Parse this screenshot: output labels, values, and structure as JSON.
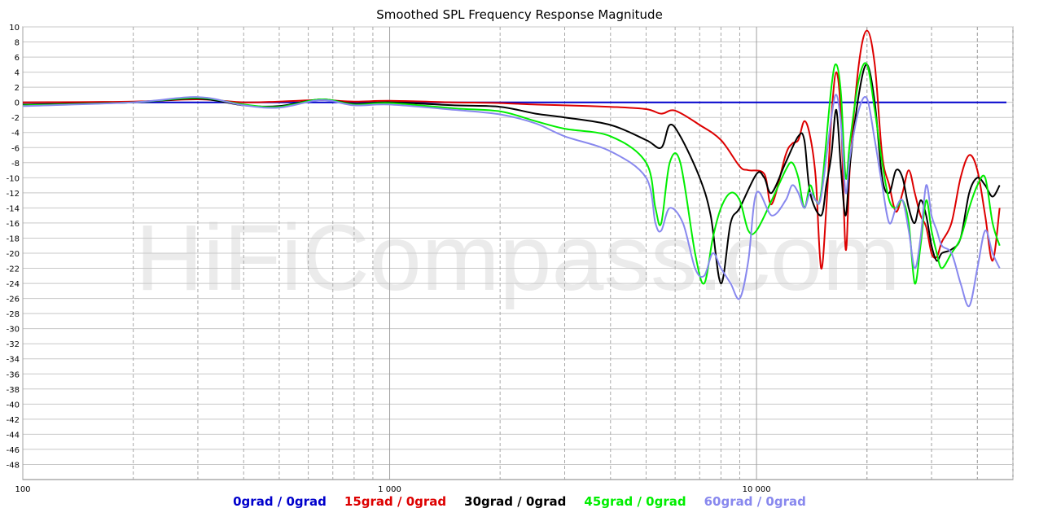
{
  "chart_data": {
    "type": "line",
    "title": "Smoothed SPL Frequency Response Magnitude",
    "watermark": "HiFiCompass.com",
    "xscale": "log",
    "xlim": [
      100,
      50000
    ],
    "ylim": [
      -50,
      10
    ],
    "x_tick_labels": [
      {
        "value": 100,
        "label": "100"
      },
      {
        "value": 1000,
        "label": "1 000"
      },
      {
        "value": 10000,
        "label": "10 000"
      }
    ],
    "y_ticks": [
      10,
      8,
      6,
      4,
      2,
      0,
      -2,
      -4,
      -6,
      -8,
      -10,
      -12,
      -14,
      -16,
      -18,
      -20,
      -22,
      -24,
      -26,
      -28,
      -30,
      -32,
      -34,
      -36,
      -38,
      -40,
      -42,
      -44,
      -46,
      -48
    ],
    "grid": true,
    "legend_position": "bottom",
    "series": [
      {
        "name": "0grad / 0grad",
        "color": "#0000cc",
        "points": [
          [
            100,
            0
          ],
          [
            300,
            0
          ],
          [
            1000,
            0
          ],
          [
            3000,
            0
          ],
          [
            10000,
            0
          ],
          [
            20000,
            0
          ],
          [
            48000,
            0
          ]
        ]
      },
      {
        "name": "15grad / 0grad",
        "color": "#dd0000",
        "points": [
          [
            100,
            0
          ],
          [
            200,
            0.1
          ],
          [
            300,
            0.4
          ],
          [
            400,
            0
          ],
          [
            500,
            0.1
          ],
          [
            650,
            0.3
          ],
          [
            800,
            0.1
          ],
          [
            1000,
            0.2
          ],
          [
            1500,
            0
          ],
          [
            2000,
            -0.1
          ],
          [
            2500,
            -0.3
          ],
          [
            3000,
            -0.4
          ],
          [
            4000,
            -0.6
          ],
          [
            5000,
            -0.9
          ],
          [
            5500,
            -1.5
          ],
          [
            6000,
            -1.1
          ],
          [
            7000,
            -3
          ],
          [
            8000,
            -5
          ],
          [
            9000,
            -8.5
          ],
          [
            9500,
            -9
          ],
          [
            10500,
            -9.5
          ],
          [
            11000,
            -13.5
          ],
          [
            12000,
            -7
          ],
          [
            12500,
            -5.5
          ],
          [
            13000,
            -5
          ],
          [
            13500,
            -2.5
          ],
          [
            14000,
            -4.5
          ],
          [
            14500,
            -10
          ],
          [
            15000,
            -22
          ],
          [
            15500,
            -14
          ],
          [
            16000,
            -2
          ],
          [
            16500,
            4
          ],
          [
            17000,
            -2
          ],
          [
            17500,
            -19.5
          ],
          [
            18000,
            -8
          ],
          [
            19000,
            5
          ],
          [
            20000,
            9.5
          ],
          [
            21000,
            5
          ],
          [
            22000,
            -7
          ],
          [
            23000,
            -11
          ],
          [
            24000,
            -14.5
          ],
          [
            25000,
            -12
          ],
          [
            26000,
            -9
          ],
          [
            27000,
            -12
          ],
          [
            28000,
            -15
          ],
          [
            29000,
            -16.5
          ],
          [
            30000,
            -20
          ],
          [
            31000,
            -20.5
          ],
          [
            32000,
            -18.5
          ],
          [
            34000,
            -16
          ],
          [
            36000,
            -10
          ],
          [
            38000,
            -7
          ],
          [
            40000,
            -9
          ],
          [
            42000,
            -15
          ],
          [
            44000,
            -21
          ],
          [
            46000,
            -14
          ]
        ]
      },
      {
        "name": "30grad / 0grad",
        "color": "#000000",
        "points": [
          [
            100,
            -0.3
          ],
          [
            200,
            0
          ],
          [
            300,
            0.5
          ],
          [
            400,
            -0.4
          ],
          [
            500,
            -0.5
          ],
          [
            650,
            0.4
          ],
          [
            800,
            -0.2
          ],
          [
            1000,
            0
          ],
          [
            1500,
            -0.4
          ],
          [
            2000,
            -0.6
          ],
          [
            2500,
            -1.5
          ],
          [
            3000,
            -2
          ],
          [
            4000,
            -3
          ],
          [
            5000,
            -5
          ],
          [
            5500,
            -6
          ],
          [
            5800,
            -3
          ],
          [
            6200,
            -4.5
          ],
          [
            7000,
            -10
          ],
          [
            7500,
            -15
          ],
          [
            8000,
            -24
          ],
          [
            8500,
            -16
          ],
          [
            9000,
            -14
          ],
          [
            10000,
            -9.5
          ],
          [
            10500,
            -10
          ],
          [
            11000,
            -12
          ],
          [
            12000,
            -8
          ],
          [
            13000,
            -4.5
          ],
          [
            13500,
            -5
          ],
          [
            14000,
            -12
          ],
          [
            15000,
            -15
          ],
          [
            15500,
            -11
          ],
          [
            16000,
            -7
          ],
          [
            16500,
            -1
          ],
          [
            17000,
            -9
          ],
          [
            17500,
            -15
          ],
          [
            18000,
            -8
          ],
          [
            19000,
            1
          ],
          [
            20000,
            5
          ],
          [
            21000,
            0
          ],
          [
            22000,
            -10
          ],
          [
            23000,
            -12
          ],
          [
            24000,
            -9
          ],
          [
            25000,
            -10
          ],
          [
            26000,
            -14
          ],
          [
            27000,
            -16
          ],
          [
            28000,
            -13
          ],
          [
            29000,
            -15
          ],
          [
            30000,
            -19
          ],
          [
            31000,
            -21
          ],
          [
            32000,
            -20
          ],
          [
            34000,
            -19.5
          ],
          [
            36000,
            -18
          ],
          [
            38000,
            -12
          ],
          [
            40000,
            -10
          ],
          [
            42000,
            -11
          ],
          [
            44000,
            -12.5
          ],
          [
            46000,
            -11
          ]
        ]
      },
      {
        "name": "45grad / 0grad",
        "color": "#00ee00",
        "points": [
          [
            100,
            -0.4
          ],
          [
            200,
            0
          ],
          [
            300,
            0.6
          ],
          [
            400,
            -0.3
          ],
          [
            500,
            -0.6
          ],
          [
            650,
            0.4
          ],
          [
            800,
            -0.3
          ],
          [
            1000,
            -0.1
          ],
          [
            1500,
            -0.8
          ],
          [
            2000,
            -1.2
          ],
          [
            2500,
            -2.5
          ],
          [
            3000,
            -3.5
          ],
          [
            4000,
            -4.5
          ],
          [
            5000,
            -8
          ],
          [
            5300,
            -14
          ],
          [
            5500,
            -16
          ],
          [
            5800,
            -8
          ],
          [
            6200,
            -8
          ],
          [
            6800,
            -20
          ],
          [
            7200,
            -24
          ],
          [
            7600,
            -18
          ],
          [
            8000,
            -14
          ],
          [
            8500,
            -12
          ],
          [
            9000,
            -13
          ],
          [
            9500,
            -17
          ],
          [
            10000,
            -17
          ],
          [
            11000,
            -13
          ],
          [
            12000,
            -9
          ],
          [
            12500,
            -8
          ],
          [
            13000,
            -10
          ],
          [
            13500,
            -14
          ],
          [
            14000,
            -11
          ],
          [
            14500,
            -13
          ],
          [
            15000,
            -12
          ],
          [
            16000,
            2
          ],
          [
            16500,
            5
          ],
          [
            17000,
            1
          ],
          [
            17500,
            -10
          ],
          [
            18000,
            -5
          ],
          [
            19000,
            3
          ],
          [
            20000,
            5
          ],
          [
            21000,
            -1
          ],
          [
            22000,
            -8
          ],
          [
            23000,
            -13
          ],
          [
            24000,
            -14
          ],
          [
            25000,
            -13
          ],
          [
            26000,
            -16
          ],
          [
            27000,
            -24
          ],
          [
            28000,
            -19
          ],
          [
            29000,
            -13
          ],
          [
            30000,
            -17
          ],
          [
            31000,
            -20
          ],
          [
            32000,
            -22
          ],
          [
            34000,
            -20
          ],
          [
            36000,
            -18
          ],
          [
            38000,
            -14
          ],
          [
            40000,
            -11
          ],
          [
            42000,
            -10
          ],
          [
            44000,
            -16
          ],
          [
            46000,
            -19
          ]
        ]
      },
      {
        "name": "60grad / 0grad",
        "color": "#8888ee",
        "points": [
          [
            100,
            -0.5
          ],
          [
            200,
            0
          ],
          [
            300,
            0.7
          ],
          [
            400,
            -0.4
          ],
          [
            500,
            -0.7
          ],
          [
            650,
            0.3
          ],
          [
            800,
            -0.4
          ],
          [
            1000,
            -0.3
          ],
          [
            1500,
            -1.0
          ],
          [
            2000,
            -1.6
          ],
          [
            2500,
            -2.8
          ],
          [
            3000,
            -4.5
          ],
          [
            4000,
            -6.5
          ],
          [
            5000,
            -10
          ],
          [
            5300,
            -16
          ],
          [
            5500,
            -17
          ],
          [
            5800,
            -14
          ],
          [
            6300,
            -16
          ],
          [
            6800,
            -22
          ],
          [
            7200,
            -23
          ],
          [
            7600,
            -20
          ],
          [
            8000,
            -22
          ],
          [
            8500,
            -24
          ],
          [
            9000,
            -26
          ],
          [
            9500,
            -21
          ],
          [
            10000,
            -12
          ],
          [
            11000,
            -15
          ],
          [
            12000,
            -13
          ],
          [
            12500,
            -11
          ],
          [
            13000,
            -12
          ],
          [
            13500,
            -14
          ],
          [
            14000,
            -12
          ],
          [
            14500,
            -13
          ],
          [
            15000,
            -12.5
          ],
          [
            16000,
            -2
          ],
          [
            16500,
            1
          ],
          [
            17000,
            -3
          ],
          [
            17500,
            -12
          ],
          [
            18000,
            -7
          ],
          [
            19000,
            -1
          ],
          [
            20000,
            0.5
          ],
          [
            21000,
            -5
          ],
          [
            22000,
            -11
          ],
          [
            23000,
            -16
          ],
          [
            24000,
            -14
          ],
          [
            25000,
            -13
          ],
          [
            26000,
            -17
          ],
          [
            27000,
            -22
          ],
          [
            28000,
            -18
          ],
          [
            29000,
            -11
          ],
          [
            30000,
            -15
          ],
          [
            31000,
            -17
          ],
          [
            32000,
            -19
          ],
          [
            34000,
            -20
          ],
          [
            36000,
            -24
          ],
          [
            38000,
            -27
          ],
          [
            40000,
            -22
          ],
          [
            42000,
            -17
          ],
          [
            44000,
            -20
          ],
          [
            46000,
            -22
          ]
        ]
      }
    ]
  }
}
